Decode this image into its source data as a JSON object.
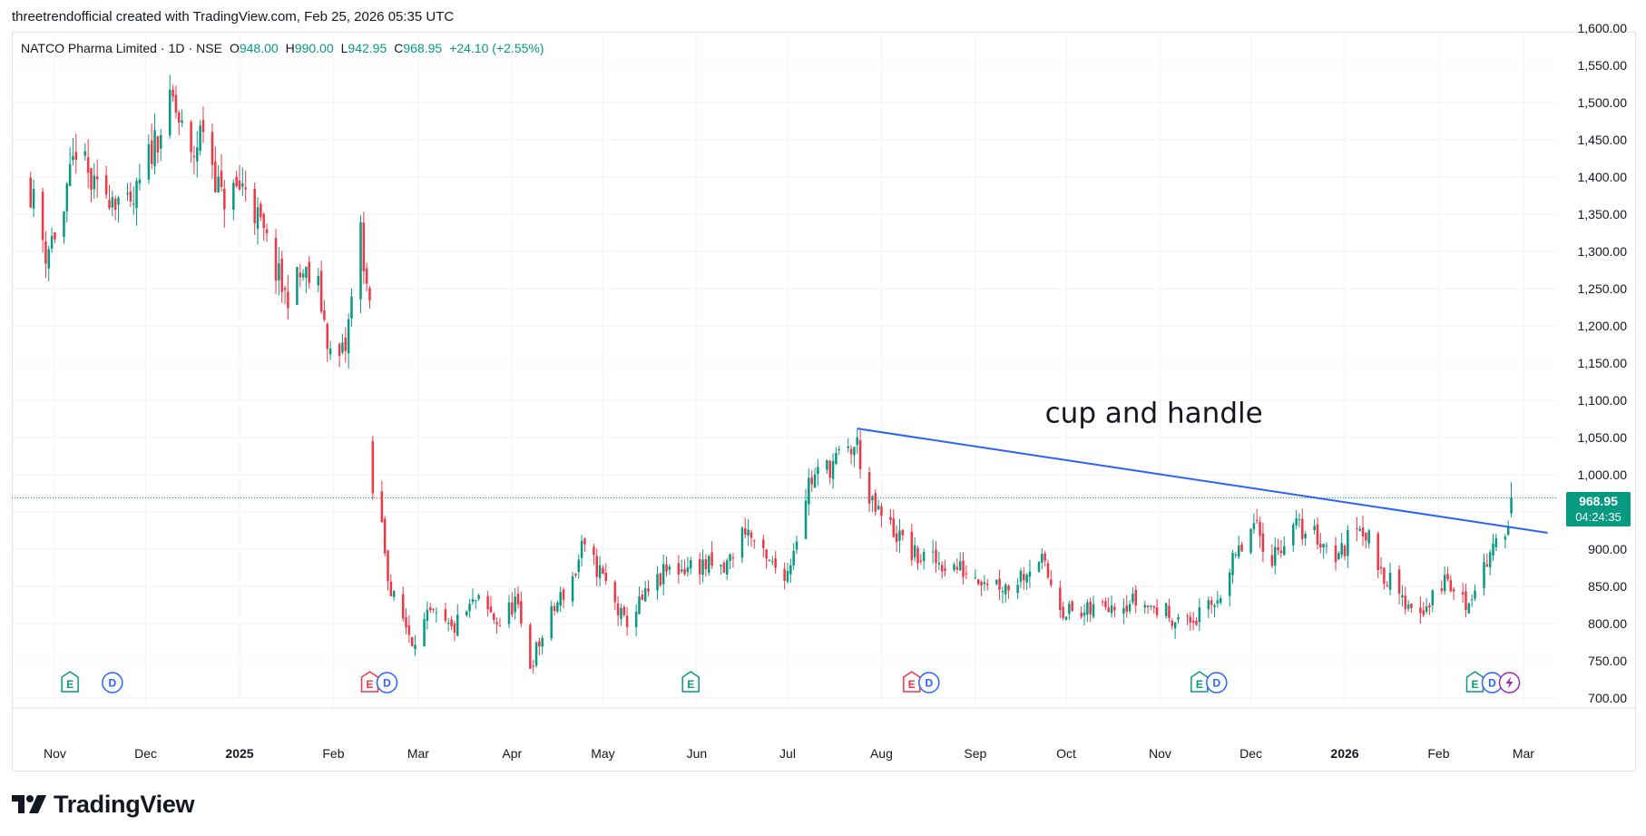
{
  "header": {
    "attribution": "threetrendofficial created with TradingView.com, Feb 25, 2026 05:35 UTC"
  },
  "legend": {
    "symbol": "NATCO Pharma Limited",
    "interval": "1D",
    "exchange": "NSE",
    "open_label": "O",
    "open": "948.00",
    "high_label": "H",
    "high": "990.00",
    "low_label": "L",
    "low": "942.95",
    "close_label": "C",
    "close": "968.95",
    "change": "+24.10 (+2.55%)"
  },
  "price_badge": {
    "price": "968.95",
    "timer": "04:24:35"
  },
  "brand": {
    "logo_text": "TradingView"
  },
  "colors": {
    "up": "#089981",
    "down": "#f23645",
    "trendline": "#2962ff",
    "grid": "#f0f3fa",
    "earnings_green": "#089981",
    "earnings_red": "#f23645",
    "dividend": "#2962ff",
    "split": "#9c27b0"
  },
  "chart_data": {
    "type": "candlestick",
    "title": "",
    "ylim": [
      680,
      1600
    ],
    "y_ticks": [
      700,
      750,
      800,
      850,
      900,
      950,
      1000,
      1050,
      1100,
      1150,
      1200,
      1250,
      1300,
      1350,
      1400,
      1450,
      1500,
      1550,
      1600
    ],
    "y_tick_labels": [
      "700.00",
      "750.00",
      "800.00",
      "850.00",
      "900.00",
      "",
      "1,000.00",
      "1,050.00",
      "1,100.00",
      "1,150.00",
      "1,200.00",
      "1,250.00",
      "1,300.00",
      "1,350.00",
      "1,400.00",
      "1,450.00",
      "1,500.00",
      "1,550.00",
      "1,600.00"
    ],
    "x_range": [
      "2024-10-23",
      "2026-03-13"
    ],
    "x_labels": [
      {
        "date": "2024-11-01",
        "label": "Nov",
        "bold": false
      },
      {
        "date": "2024-12-01",
        "label": "Dec",
        "bold": false
      },
      {
        "date": "2025-01-01",
        "label": "2025",
        "bold": true
      },
      {
        "date": "2025-02-01",
        "label": "Feb",
        "bold": false
      },
      {
        "date": "2025-03-01",
        "label": "Mar",
        "bold": false
      },
      {
        "date": "2025-04-01",
        "label": "Apr",
        "bold": false
      },
      {
        "date": "2025-05-01",
        "label": "May",
        "bold": false
      },
      {
        "date": "2025-06-01",
        "label": "Jun",
        "bold": false
      },
      {
        "date": "2025-07-01",
        "label": "Jul",
        "bold": false
      },
      {
        "date": "2025-08-01",
        "label": "Aug",
        "bold": false
      },
      {
        "date": "2025-09-01",
        "label": "Sep",
        "bold": false
      },
      {
        "date": "2025-10-01",
        "label": "Oct",
        "bold": false
      },
      {
        "date": "2025-11-01",
        "label": "Nov",
        "bold": false
      },
      {
        "date": "2025-12-01",
        "label": "Dec",
        "bold": false
      },
      {
        "date": "2026-01-01",
        "label": "2026",
        "bold": true
      },
      {
        "date": "2026-02-01",
        "label": "Feb",
        "bold": false
      },
      {
        "date": "2026-03-01",
        "label": "Mar",
        "bold": false
      }
    ],
    "last_price": 968.95,
    "trendline": {
      "start": {
        "date": "2025-07-24",
        "price": 1062
      },
      "end": {
        "date": "2026-03-09",
        "price": 922
      }
    },
    "annotation": {
      "text": "cup and handle",
      "date": "2025-09-24",
      "price": 1070
    },
    "events": [
      {
        "date": "2024-11-06",
        "types": [
          "E"
        ],
        "earnings": "green"
      },
      {
        "date": "2024-11-20",
        "types": [
          "D"
        ]
      },
      {
        "date": "2025-02-13",
        "types": [
          "E",
          "D"
        ],
        "earnings": "red"
      },
      {
        "date": "2025-05-30",
        "types": [
          "E"
        ],
        "earnings": "green"
      },
      {
        "date": "2025-08-11",
        "types": [
          "E",
          "D"
        ],
        "earnings": "red"
      },
      {
        "date": "2025-11-14",
        "types": [
          "E",
          "D"
        ],
        "earnings": "green"
      },
      {
        "date": "2026-02-13",
        "types": [
          "E",
          "D",
          "S"
        ],
        "earnings": "green"
      }
    ],
    "anchors": [
      [
        "2024-10-23",
        1400
      ],
      [
        "2024-10-29",
        1300
      ],
      [
        "2024-11-04",
        1350
      ],
      [
        "2024-11-08",
        1440
      ],
      [
        "2024-11-14",
        1380
      ],
      [
        "2024-11-20",
        1380
      ],
      [
        "2024-11-26",
        1350
      ],
      [
        "2024-12-04",
        1450
      ],
      [
        "2024-12-10",
        1500
      ],
      [
        "2024-12-16",
        1420
      ],
      [
        "2024-12-20",
        1470
      ],
      [
        "2024-12-26",
        1370
      ],
      [
        "2025-01-03",
        1390
      ],
      [
        "2025-01-09",
        1320
      ],
      [
        "2025-01-16",
        1240
      ],
      [
        "2025-01-22",
        1270
      ],
      [
        "2025-01-27",
        1250
      ],
      [
        "2025-02-01",
        1140
      ],
      [
        "2025-02-05",
        1170
      ],
      [
        "2025-02-10",
        1330
      ],
      [
        "2025-02-13",
        1215
      ],
      [
        "2025-02-14",
        1000
      ],
      [
        "2025-02-17",
        930
      ],
      [
        "2025-02-20",
        840
      ],
      [
        "2025-02-27",
        780
      ],
      [
        "2025-03-05",
        810
      ],
      [
        "2025-03-12",
        790
      ],
      [
        "2025-03-20",
        830
      ],
      [
        "2025-03-28",
        800
      ],
      [
        "2025-04-02",
        830
      ],
      [
        "2025-04-07",
        745
      ],
      [
        "2025-04-15",
        820
      ],
      [
        "2025-04-22",
        870
      ],
      [
        "2025-04-24",
        900
      ],
      [
        "2025-04-30",
        870
      ],
      [
        "2025-05-08",
        800
      ],
      [
        "2025-05-14",
        830
      ],
      [
        "2025-05-22",
        870
      ],
      [
        "2025-06-02",
        880
      ],
      [
        "2025-06-10",
        870
      ],
      [
        "2025-06-17",
        930
      ],
      [
        "2025-06-24",
        880
      ],
      [
        "2025-07-01",
        870
      ],
      [
        "2025-07-08",
        990
      ],
      [
        "2025-07-14",
        1010
      ],
      [
        "2025-07-21",
        1030
      ],
      [
        "2025-07-24",
        1040
      ],
      [
        "2025-07-28",
        960
      ],
      [
        "2025-08-04",
        930
      ],
      [
        "2025-08-12",
        890
      ],
      [
        "2025-08-22",
        880
      ],
      [
        "2025-09-02",
        865
      ],
      [
        "2025-09-12",
        850
      ],
      [
        "2025-09-22",
        890
      ],
      [
        "2025-09-30",
        820
      ],
      [
        "2025-10-06",
        810
      ],
      [
        "2025-10-15",
        830
      ],
      [
        "2025-10-24",
        830
      ],
      [
        "2025-11-03",
        815
      ],
      [
        "2025-11-10",
        800
      ],
      [
        "2025-11-18",
        820
      ],
      [
        "2025-11-25",
        880
      ],
      [
        "2025-12-02",
        930
      ],
      [
        "2025-12-08",
        890
      ],
      [
        "2025-12-15",
        930
      ],
      [
        "2025-12-22",
        920
      ],
      [
        "2025-12-30",
        890
      ],
      [
        "2026-01-06",
        940
      ],
      [
        "2026-01-12",
        880
      ],
      [
        "2026-01-20",
        830
      ],
      [
        "2026-01-28",
        820
      ],
      [
        "2026-02-03",
        860
      ],
      [
        "2026-02-10",
        825
      ],
      [
        "2026-02-16",
        880
      ],
      [
        "2026-02-20",
        900
      ],
      [
        "2026-02-23",
        930
      ],
      [
        "2026-02-24",
        945
      ],
      [
        "2026-02-25",
        968.95
      ]
    ]
  }
}
